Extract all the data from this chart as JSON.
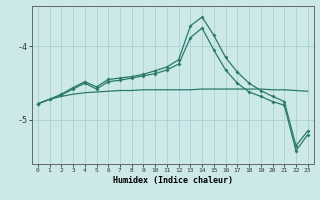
{
  "xlabel": "Humidex (Indice chaleur)",
  "bg_color": "#cce8e8",
  "line_color": "#2a7a6a",
  "grid_color": "#aed4d4",
  "x": [
    0,
    1,
    2,
    3,
    4,
    5,
    6,
    7,
    8,
    9,
    10,
    11,
    12,
    13,
    14,
    15,
    16,
    17,
    18,
    19,
    20,
    21,
    22,
    23
  ],
  "line_flat": [
    -4.78,
    -4.72,
    -4.68,
    -4.65,
    -4.63,
    -4.62,
    -4.61,
    -4.6,
    -4.6,
    -4.59,
    -4.59,
    -4.59,
    -4.59,
    -4.59,
    -4.58,
    -4.58,
    -4.58,
    -4.58,
    -4.58,
    -4.58,
    -4.59,
    -4.59,
    -4.6,
    -4.61
  ],
  "line_main": [
    -4.78,
    -4.72,
    -4.65,
    -4.56,
    -4.48,
    -4.55,
    -4.45,
    -4.43,
    -4.41,
    -4.38,
    -4.33,
    -4.28,
    -4.18,
    -3.72,
    -3.6,
    -3.85,
    -4.15,
    -4.35,
    -4.5,
    -4.6,
    -4.68,
    -4.75,
    -5.35,
    -5.15
  ],
  "line_low": [
    -4.78,
    -4.72,
    -4.66,
    -4.58,
    -4.5,
    -4.58,
    -4.48,
    -4.46,
    -4.43,
    -4.4,
    -4.37,
    -4.32,
    -4.24,
    -3.88,
    -3.75,
    -4.05,
    -4.32,
    -4.5,
    -4.62,
    -4.68,
    -4.75,
    -4.8,
    -5.42,
    -5.2
  ],
  "ylim": [
    -5.6,
    -3.45
  ],
  "yticks": [
    -5.0,
    -4.0
  ],
  "xlim": [
    -0.5,
    23.5
  ]
}
